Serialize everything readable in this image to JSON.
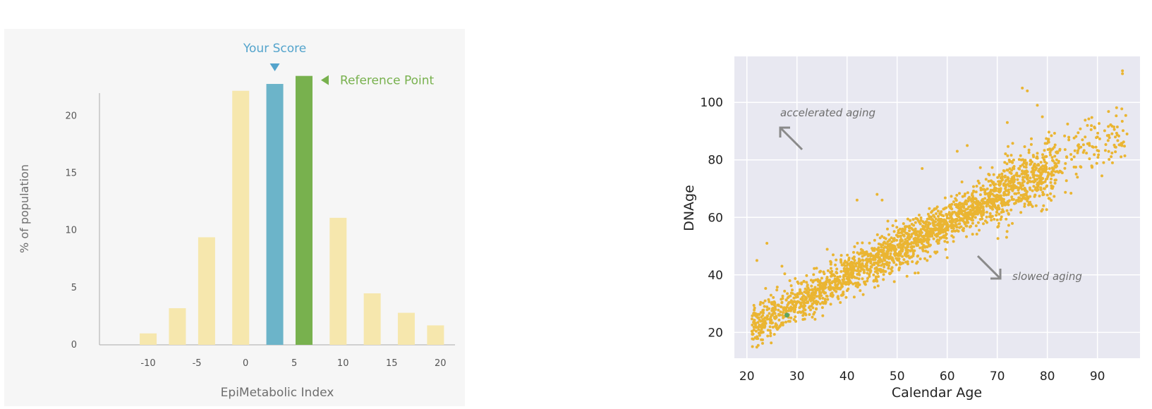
{
  "colors": {
    "left_panel_bg": "#f6f6f6",
    "bar_default": "#f6e7ad",
    "bar_score": "#6cb4c9",
    "bar_reference": "#78b14e",
    "score_text": "#54a4cc",
    "reference_text": "#78b14e",
    "right_plot_bg": "#e8e8f1",
    "scatter_point": "#eab532",
    "highlight_point": "#5fa560",
    "arrow": "#8a8a8a"
  },
  "chart_data": [
    {
      "type": "bar",
      "xlabel": "EpiMetabolic Index",
      "ylabel": "% of population",
      "x_ticks": [
        -10,
        -5,
        0,
        5,
        10,
        15,
        20
      ],
      "y_ticks": [
        0,
        5,
        10,
        15,
        20
      ],
      "xlim": [
        -15,
        21.5
      ],
      "ylim": [
        0,
        22
      ],
      "categories": [
        -10,
        -7,
        -4,
        -0.5,
        3,
        6,
        9.5,
        13,
        16.5,
        19.5
      ],
      "values": [
        1,
        3.2,
        9.4,
        22.2,
        22.8,
        23.5,
        11.1,
        4.5,
        2.8,
        1.7
      ],
      "highlight": {
        "score_index": 4,
        "reference_index": 5
      },
      "annotations": {
        "score_label": "Your Score",
        "reference_label": "Reference Point"
      }
    },
    {
      "type": "scatter",
      "xlabel": "Calendar Age",
      "ylabel": "DNAge",
      "x_ticks": [
        20,
        30,
        40,
        50,
        60,
        70,
        80,
        90
      ],
      "y_ticks": [
        20,
        40,
        60,
        80,
        100
      ],
      "xlim": [
        17.5,
        98.5
      ],
      "ylim": [
        11,
        116
      ],
      "grid": true,
      "trend": {
        "slope": 0.93,
        "intercept": 2.5,
        "noise": 3.6,
        "n_points": 2300,
        "x_range": [
          21,
          96
        ]
      },
      "outliers": [
        [
          22,
          45
        ],
        [
          24,
          51
        ],
        [
          27,
          43
        ],
        [
          42,
          66
        ],
        [
          46,
          68
        ],
        [
          47,
          66
        ],
        [
          55,
          77
        ],
        [
          62,
          83
        ],
        [
          64,
          85
        ],
        [
          72,
          93
        ],
        [
          75,
          105
        ],
        [
          76,
          104
        ],
        [
          78,
          99
        ],
        [
          79,
          95
        ],
        [
          88,
          92
        ],
        [
          90,
          88
        ],
        [
          95,
          111
        ],
        [
          95,
          110
        ],
        [
          93,
          79
        ],
        [
          60,
          46
        ],
        [
          56,
          45
        ]
      ],
      "highlight_point": [
        28,
        26
      ],
      "annotations": {
        "upper": "accelerated aging",
        "lower": "slowed aging"
      }
    }
  ]
}
